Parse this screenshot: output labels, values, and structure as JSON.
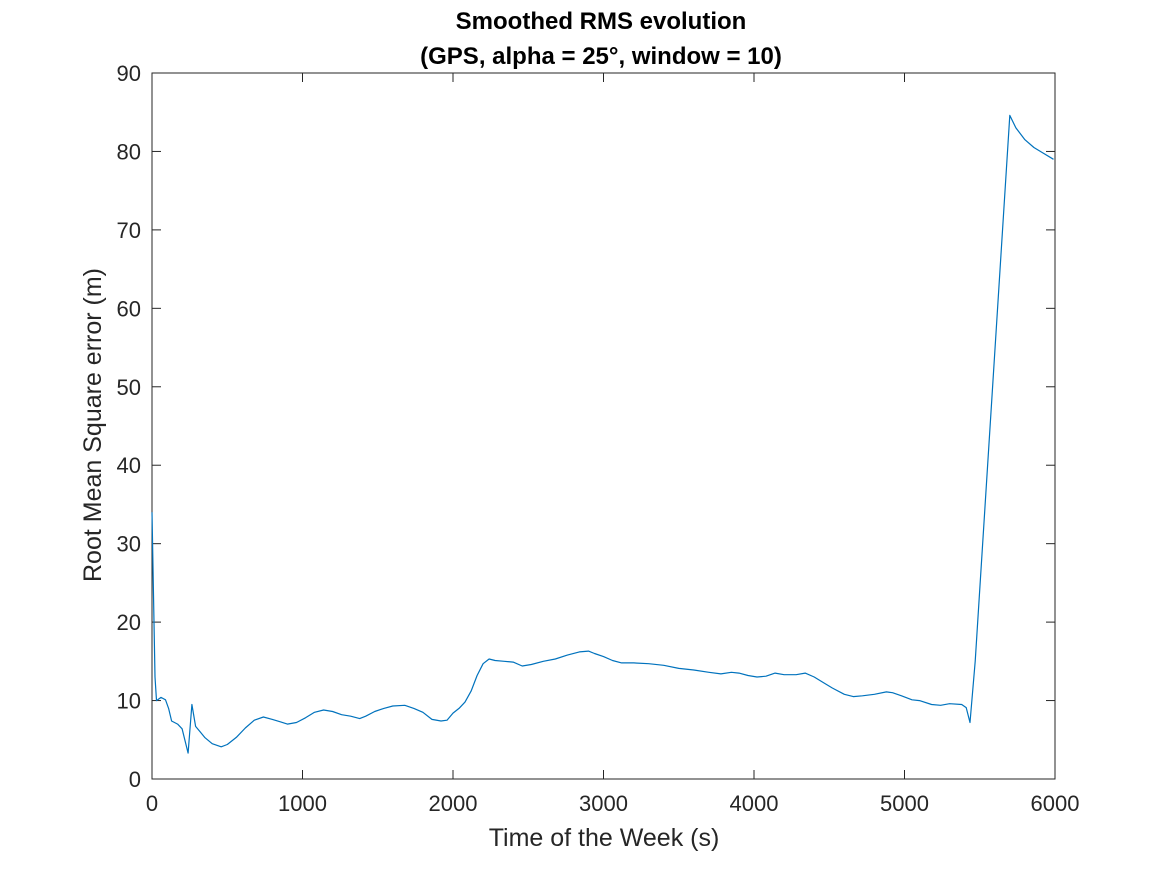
{
  "chart_data": {
    "type": "line",
    "title": "Smoothed RMS evolution",
    "subtitle": "(GPS, alpha = 25°, window = 10)",
    "xlabel": "Time of the Week (s)",
    "ylabel": "Root Mean Square error (m)",
    "xlim": [
      0,
      6000
    ],
    "ylim": [
      0,
      90
    ],
    "x_ticks": [
      "0",
      "1000",
      "2000",
      "3000",
      "4000",
      "5000",
      "6000"
    ],
    "y_ticks": [
      "0",
      "10",
      "20",
      "30",
      "40",
      "50",
      "60",
      "70",
      "80",
      "90"
    ],
    "grid": false,
    "legend": "none",
    "line_color": "#0072BD",
    "series": [
      {
        "x": [
          0,
          20,
          30,
          60,
          90,
          110,
          130,
          170,
          200,
          240,
          265,
          290,
          320,
          350,
          400,
          460,
          500,
          560,
          620,
          680,
          740,
          800,
          850,
          900,
          960,
          1020,
          1080,
          1140,
          1200,
          1260,
          1320,
          1380,
          1420,
          1480,
          1540,
          1600,
          1680,
          1740,
          1800,
          1860,
          1920,
          1960,
          2000,
          2040,
          2080,
          2120,
          2160,
          2200,
          2240,
          2280,
          2340,
          2400,
          2460,
          2520,
          2600,
          2680,
          2760,
          2840,
          2900,
          2940,
          3000,
          3060,
          3120,
          3200,
          3300,
          3400,
          3500,
          3600,
          3700,
          3780,
          3850,
          3900,
          3960,
          4020,
          4080,
          4140,
          4200,
          4280,
          4340,
          4400,
          4460,
          4520,
          4600,
          4660,
          4720,
          4800,
          4880,
          4920,
          4980,
          5050,
          5100,
          5180,
          5240,
          5300,
          5380,
          5410,
          5435,
          5470,
          5700,
          5740,
          5800,
          5860,
          5920,
          5990
        ],
        "y": [
          34.0,
          13.0,
          10.0,
          10.4,
          10.1,
          9.0,
          7.4,
          7.0,
          6.4,
          3.3,
          9.5,
          6.7,
          6.0,
          5.3,
          4.5,
          4.1,
          4.4,
          5.3,
          6.5,
          7.5,
          7.9,
          7.6,
          7.3,
          7.0,
          7.2,
          7.8,
          8.5,
          8.8,
          8.6,
          8.2,
          8.0,
          7.7,
          8.0,
          8.6,
          9.0,
          9.3,
          9.4,
          9.0,
          8.5,
          7.6,
          7.4,
          7.5,
          8.4,
          9.0,
          9.8,
          11.2,
          13.2,
          14.7,
          15.3,
          15.1,
          15.0,
          14.9,
          14.4,
          14.6,
          15.0,
          15.3,
          15.8,
          16.2,
          16.3,
          16.0,
          15.6,
          15.1,
          14.8,
          14.8,
          14.7,
          14.5,
          14.1,
          13.9,
          13.6,
          13.4,
          13.6,
          13.5,
          13.2,
          13.0,
          13.1,
          13.5,
          13.3,
          13.3,
          13.5,
          13.0,
          12.3,
          11.6,
          10.8,
          10.5,
          10.6,
          10.8,
          11.1,
          11.0,
          10.6,
          10.1,
          10.0,
          9.5,
          9.4,
          9.6,
          9.5,
          9.1,
          7.2,
          15.0,
          84.6,
          83.0,
          81.5,
          80.5,
          79.8,
          79.0
        ]
      }
    ]
  }
}
